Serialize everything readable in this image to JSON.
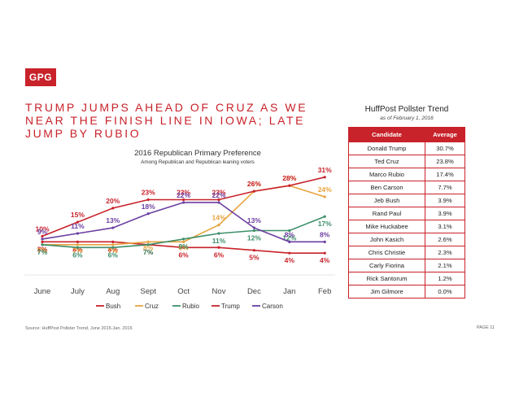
{
  "logo_text": "GPG",
  "headline": "TRUMP JUMPS AHEAD OF CRUZ AS WE NEAR THE FINISH LINE IN IOWA; LATE JUMP BY RUBIO",
  "chart_data": {
    "type": "line",
    "title": "2016 Republican Primary Preference",
    "subtitle": "Among Republican and Republican leaning voters",
    "categories": [
      "June",
      "July",
      "Aug",
      "Sept",
      "Oct",
      "Nov",
      "Dec",
      "Jan",
      "Feb"
    ],
    "ylim": [
      0,
      35
    ],
    "legend_position": "bottom",
    "series": [
      {
        "name": "Bush",
        "color": "#c8222a",
        "values": [
          8,
          8,
          8,
          7,
          6,
          6,
          5,
          4,
          4
        ],
        "labels": [
          "8%",
          "8%",
          "8%",
          "7%",
          "6%",
          "6%",
          "5%",
          "4%",
          "4%"
        ]
      },
      {
        "name": "Cruz",
        "color": "#e8a33d",
        "values": [
          7,
          7,
          7,
          8,
          8,
          14,
          26,
          28,
          24
        ],
        "labels": [
          "7%",
          "7%",
          "7%",
          "8%",
          "8%",
          "14%",
          "26%",
          "28%",
          "24%"
        ]
      },
      {
        "name": "Rubio",
        "color": "#3e8e6a",
        "values": [
          7,
          6,
          6,
          7,
          9,
          11,
          12,
          12,
          17
        ],
        "labels": [
          "7%",
          "6%",
          "6%",
          "7%",
          "9%",
          "11%",
          "12%",
          "12%",
          "17%"
        ]
      },
      {
        "name": "Trump",
        "color": "#c8222a",
        "values": [
          10,
          15,
          20,
          23,
          23,
          23,
          26,
          28,
          31
        ],
        "labels": [
          "10%",
          "15%",
          "20%",
          "23%",
          "23%",
          "23%",
          "26%",
          "28%",
          "31%"
        ]
      },
      {
        "name": "Carson",
        "color": "#6b3fa0",
        "values": [
          9,
          11,
          13,
          18,
          22,
          22,
          13,
          8,
          8
        ],
        "labels": [
          "9%",
          "11%",
          "13%",
          "18%",
          "22%",
          "22%",
          "13%",
          "8%",
          "8%"
        ]
      }
    ]
  },
  "table": {
    "title": "HuffPost Pollster Trend",
    "as_of": "as of February 1, 2016",
    "headers": [
      "Candidate",
      "Average"
    ],
    "rows": [
      [
        "Donald Trump",
        "30.7%"
      ],
      [
        "Ted Cruz",
        "23.8%"
      ],
      [
        "Marco Rubio",
        "17.4%"
      ],
      [
        "Ben Carson",
        "7.7%"
      ],
      [
        "Jeb Bush",
        "3.9%"
      ],
      [
        "Rand Paul",
        "3.9%"
      ],
      [
        "Mike Huckabee",
        "3.1%"
      ],
      [
        "John Kasich",
        "2.6%"
      ],
      [
        "Chris Christie",
        "2.3%"
      ],
      [
        "Carly Fiorina",
        "2.1%"
      ],
      [
        "Rick Santorum",
        "1.2%"
      ],
      [
        "Jim Gilmore",
        "0.0%"
      ]
    ]
  },
  "source": "Source: HuffPost Pollster Trend, June 2015-Jan. 2016",
  "page_label": "PAGE 11"
}
